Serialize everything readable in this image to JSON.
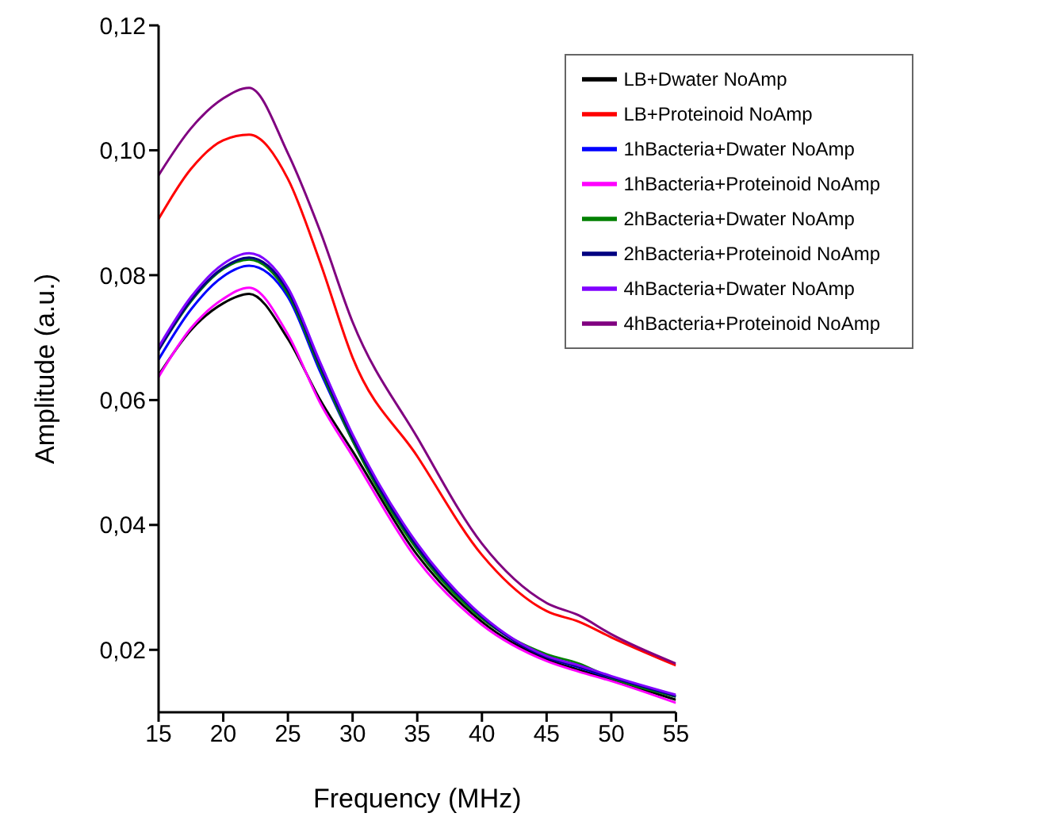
{
  "chart_data": {
    "type": "line",
    "xlabel": "Frequency (MHz)",
    "ylabel": "Amplitude (a.u.)",
    "x": [
      15,
      17.5,
      20,
      22,
      25,
      27.5,
      30,
      35,
      40,
      45,
      47.5,
      50,
      55
    ],
    "series": [
      {
        "name": "LB+Dwater NoAmp",
        "color": "#000000",
        "values": [
          0.064,
          0.0712,
          0.0755,
          0.077,
          0.0698,
          0.06,
          0.0518,
          0.0352,
          0.0245,
          0.0185,
          0.0168,
          0.0152,
          0.012
        ]
      },
      {
        "name": "LB+Proteinoid NoAmp",
        "color": "#ff0000",
        "values": [
          0.089,
          0.097,
          0.1016,
          0.1025,
          0.0954,
          0.082,
          0.0668,
          0.051,
          0.0352,
          0.0262,
          0.0245,
          0.022,
          0.0175
        ]
      },
      {
        "name": "1hBacteria+Dwater NoAmp",
        "color": "#0000ff",
        "values": [
          0.0665,
          0.0745,
          0.0798,
          0.0815,
          0.0765,
          0.0645,
          0.0535,
          0.0362,
          0.0252,
          0.0188,
          0.0172,
          0.0155,
          0.0125
        ]
      },
      {
        "name": "1hBacteria+Proteinoid NoAmp",
        "color": "#ff00ff",
        "values": [
          0.0637,
          0.0715,
          0.0762,
          0.078,
          0.0705,
          0.0595,
          0.051,
          0.0344,
          0.024,
          0.0182,
          0.0165,
          0.015,
          0.0115
        ]
      },
      {
        "name": "2hBacteria+Dwater NoAmp",
        "color": "#008000",
        "values": [
          0.068,
          0.0758,
          0.081,
          0.0825,
          0.077,
          0.065,
          0.0535,
          0.036,
          0.025,
          0.0193,
          0.0178,
          0.0155,
          0.0125
        ]
      },
      {
        "name": "2hBacteria+Proteinoid NoAmp",
        "color": "#000080",
        "values": [
          0.068,
          0.076,
          0.0812,
          0.0828,
          0.0775,
          0.0655,
          0.054,
          0.0365,
          0.0253,
          0.0188,
          0.0173,
          0.0156,
          0.0126
        ]
      },
      {
        "name": "4hBacteria+Dwater NoAmp",
        "color": "#8000ff",
        "values": [
          0.0685,
          0.0765,
          0.0818,
          0.0835,
          0.078,
          0.066,
          0.0545,
          0.037,
          0.0255,
          0.019,
          0.0175,
          0.0158,
          0.0128
        ]
      },
      {
        "name": "4hBacteria+Proteinoid NoAmp",
        "color": "#800080",
        "values": [
          0.096,
          0.1035,
          0.1083,
          0.11,
          0.0995,
          0.087,
          0.0725,
          0.054,
          0.037,
          0.0275,
          0.0255,
          0.0225,
          0.0178
        ]
      }
    ],
    "xlim": [
      15,
      55
    ],
    "xticks": [
      15,
      20,
      25,
      30,
      35,
      40,
      45,
      50,
      55
    ],
    "ylim": [
      0.01,
      0.12
    ],
    "yticks": [
      {
        "value": 0.02,
        "label": "0,02"
      },
      {
        "value": 0.04,
        "label": "0,04"
      },
      {
        "value": 0.06,
        "label": "0,06"
      },
      {
        "value": 0.08,
        "label": "0,08"
      },
      {
        "value": 0.1,
        "label": "0,10"
      },
      {
        "value": 0.12,
        "label": "0,12"
      }
    ],
    "grid": false,
    "legend": "top right",
    "marker": "none",
    "line_style": "solid"
  }
}
